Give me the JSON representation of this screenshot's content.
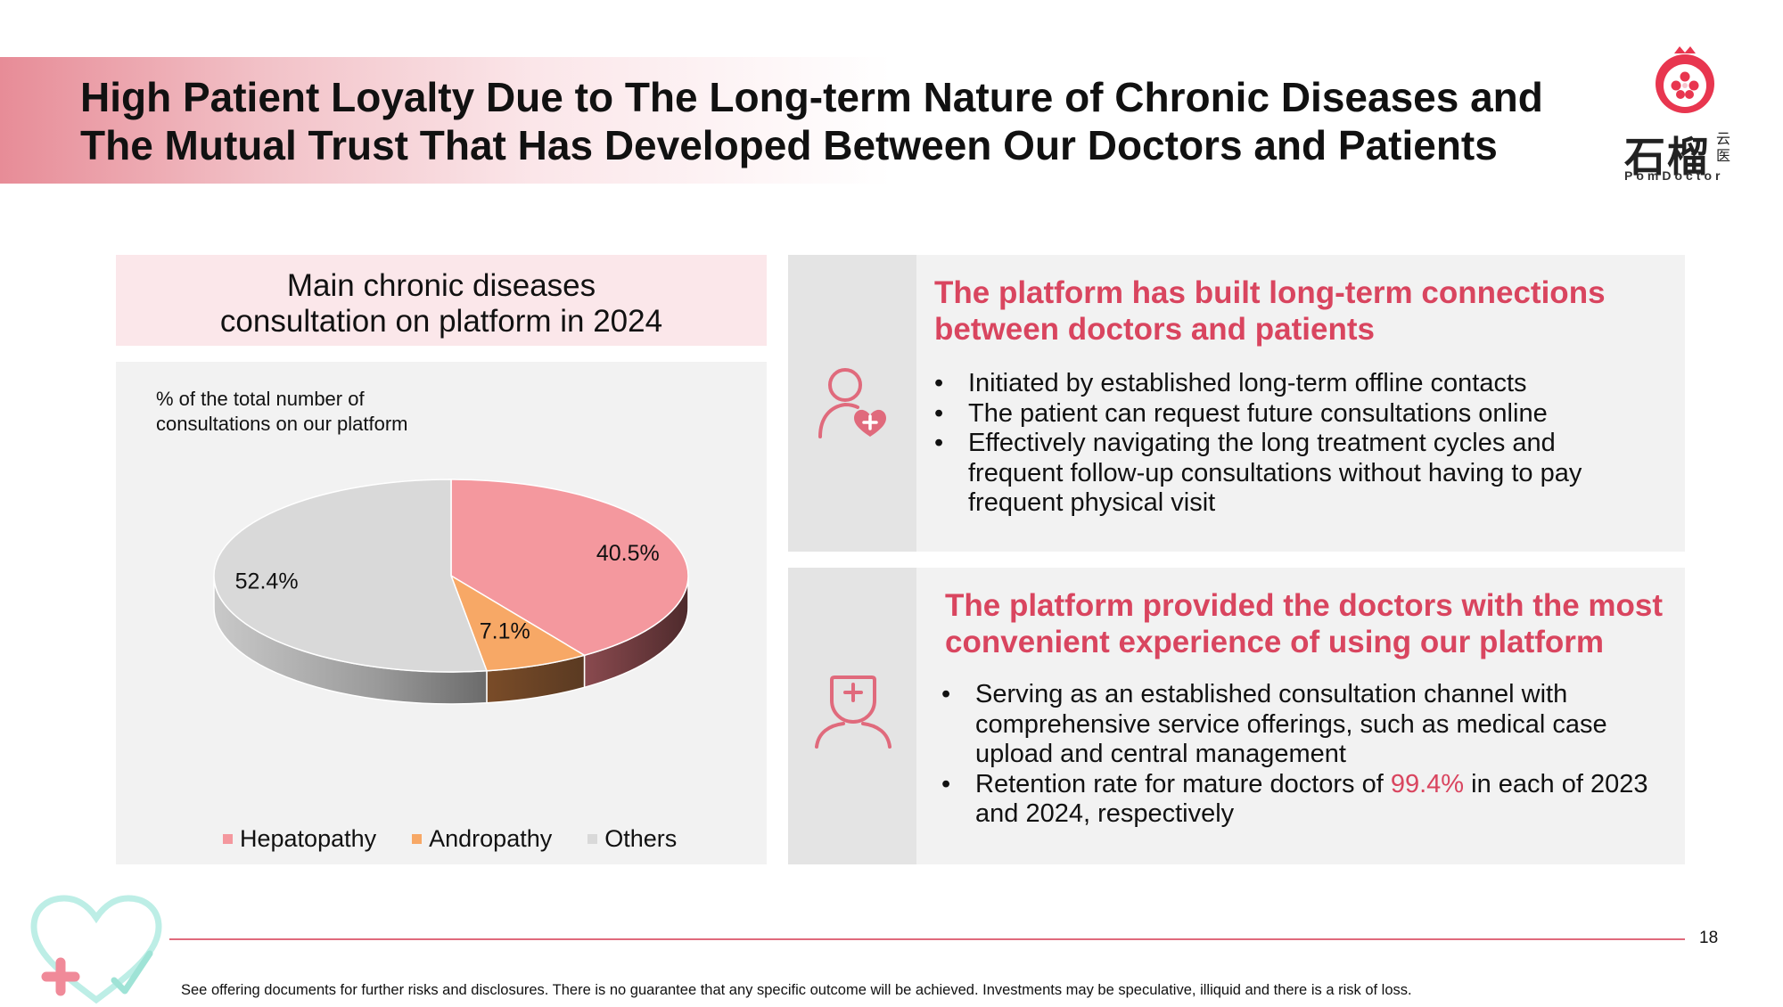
{
  "title": {
    "line1": "High Patient Loyalty Due to The Long-term Nature of Chronic Diseases and",
    "line2": "The Mutual Trust That Has Developed Between Our Doctors and Patients"
  },
  "logo": {
    "chinese": "石榴",
    "chinese_small": "云医",
    "english": "PomDoctor"
  },
  "chart_panel": {
    "header_line1": "Main chronic diseases",
    "header_line2": "consultation on platform in 2024",
    "subtitle_line1": "% of the total number of",
    "subtitle_line2": "consultations on our platform"
  },
  "chart_data": {
    "type": "pie",
    "title": "Main chronic diseases consultation on platform in 2024",
    "subtitle": "% of the total number of consultations on our platform",
    "categories": [
      "Hepatopathy",
      "Andropathy",
      "Others"
    ],
    "values": [
      40.5,
      7.1,
      52.4
    ],
    "labels": [
      "40.5%",
      "7.1%",
      "52.4%"
    ],
    "colors": [
      "#f4989e",
      "#f7a866",
      "#d9d9d9"
    ],
    "style": "3d",
    "legend": "bottom"
  },
  "card1": {
    "title_line1": "The platform has built long-term connections",
    "title_line2": "between doctors and patients",
    "icon": "patient-heart-icon",
    "bullets": [
      [
        "Initiated by established long-term offline contacts"
      ],
      [
        "The patient can request future consultations online"
      ],
      [
        "Effectively navigating the long treatment cycles and",
        "frequent follow-up consultations without having to pay",
        "frequent physical visit"
      ]
    ]
  },
  "card2": {
    "title_line1": "The platform provided the doctors with the most",
    "title_line2": "convenient experience of using our platform",
    "icon": "doctor-cross-icon",
    "bullet1": [
      "Serving as an established consultation channel with",
      "comprehensive service offerings, such as medical case",
      "upload and central management"
    ],
    "bullet2": {
      "prefix": "Retention rate for mature doctors of ",
      "highlight": "99.4%",
      "suffix": " in each of 2023",
      "line2": "and 2024, respectively"
    }
  },
  "footer": {
    "page_number": "18",
    "disclaimer": "See offering documents for further risks and disclosures. There is no guarantee that any specific outcome will be achieved. Investments may be speculative, illiquid and there is a risk of loss."
  },
  "colors": {
    "accent": "#d9455f",
    "panel": "#f2f2f2",
    "header_pink": "#fbe7ea"
  }
}
